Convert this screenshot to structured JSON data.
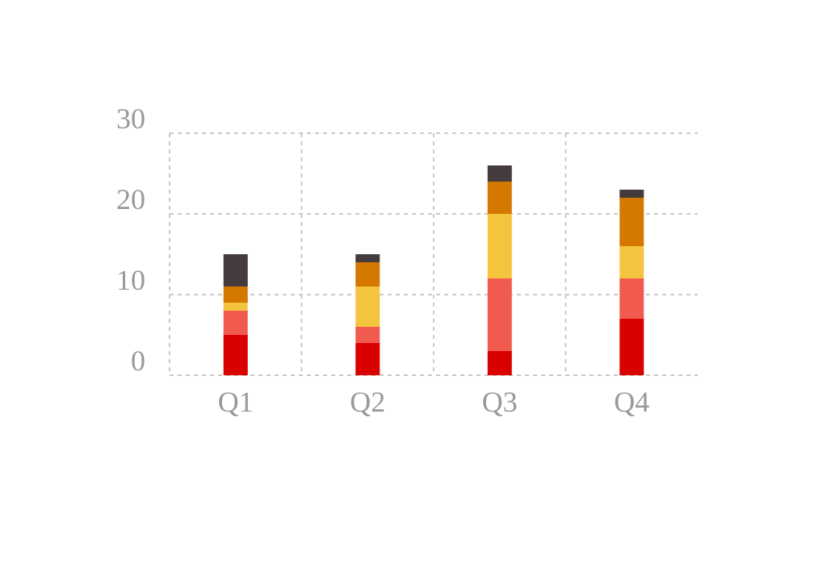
{
  "chart_data": {
    "type": "bar",
    "stacked": true,
    "title": "",
    "xlabel": "",
    "ylabel": "",
    "categories": [
      "Q1",
      "Q2",
      "Q3",
      "Q4"
    ],
    "ylim": [
      0,
      30
    ],
    "yticks": [
      0,
      10,
      20,
      30
    ],
    "grid": true,
    "legend": "none",
    "series": [
      {
        "color": "#d90000",
        "values": [
          5,
          4,
          3,
          7
        ]
      },
      {
        "color": "#f05a4f",
        "values": [
          3,
          2,
          9,
          5
        ]
      },
      {
        "color": "#f5c43e",
        "values": [
          1,
          5,
          8,
          4
        ]
      },
      {
        "color": "#d47800",
        "values": [
          2,
          3,
          4,
          6
        ]
      },
      {
        "color": "#453b3d",
        "values": [
          4,
          1,
          2,
          1
        ]
      }
    ]
  }
}
